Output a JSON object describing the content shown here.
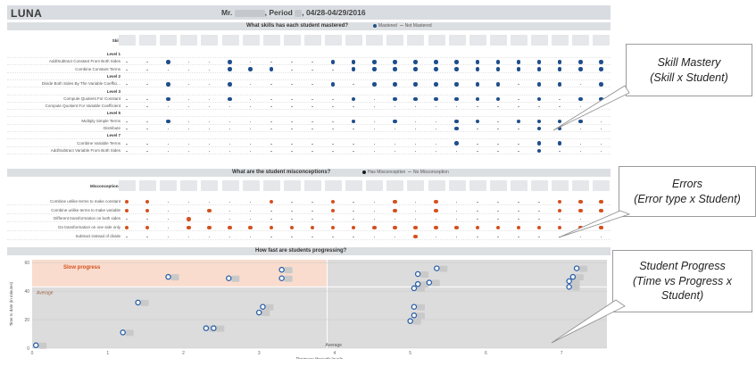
{
  "dashboard": {
    "logo": "LUNA",
    "title_prefix": "Mr.",
    "title_mid": ", Period",
    "title_suffix": ", 04/28-04/29/2016"
  },
  "mastery": {
    "header": "What skills has each student mastered?",
    "legend_mastered": "Mastered",
    "legend_not": "Not Mastered",
    "skill_label": "Skill",
    "rows": [
      {
        "label": "Level 1",
        "bold": true,
        "dots": []
      },
      {
        "label": "Add/Subtract Constant From Both Sides",
        "bold": false,
        "dots": [
          2,
          5,
          10,
          11,
          12,
          13,
          14,
          15,
          16,
          17,
          18,
          19,
          20,
          21,
          22,
          23
        ]
      },
      {
        "label": "Combine Constant Terms",
        "bold": false,
        "dots": [
          5,
          6,
          7,
          11,
          12,
          13,
          14,
          15,
          16,
          17,
          18,
          19,
          20,
          21,
          22,
          23
        ]
      },
      {
        "label": "Level 2",
        "bold": true,
        "dots": []
      },
      {
        "label": "Divide Both Sides By The Variable Coeffici...",
        "bold": false,
        "dots": [
          2,
          5,
          10,
          12,
          13,
          14,
          15,
          16,
          17,
          18,
          20,
          21,
          23
        ]
      },
      {
        "label": "Level 3",
        "bold": true,
        "dots": []
      },
      {
        "label": "Compute Quotient For Constant",
        "bold": false,
        "dots": [
          2,
          5,
          11,
          13,
          14,
          15,
          16,
          17,
          18,
          20,
          22,
          23
        ]
      },
      {
        "label": "Compute Quotient For Variable Coefficient",
        "bold": false,
        "dots": []
      },
      {
        "label": "Level 5",
        "bold": true,
        "dots": []
      },
      {
        "label": "Multiply Simple Terms",
        "bold": false,
        "dots": [
          2,
          11,
          13,
          16,
          17,
          19,
          20,
          21,
          22
        ]
      },
      {
        "label": "Distribute",
        "bold": false,
        "dots": [
          16,
          20,
          21
        ]
      },
      {
        "label": "Level 7",
        "bold": true,
        "dots": []
      },
      {
        "label": "Combine Variable Terms",
        "bold": false,
        "dots": [
          16,
          20,
          21
        ]
      },
      {
        "label": "Add/Subtract Variable From Both Sides",
        "bold": false,
        "dots": [
          20
        ]
      }
    ]
  },
  "errors": {
    "header": "What are the student misconceptions?",
    "legend_has": "Has Misconception",
    "legend_no": "No Misconception",
    "label": "Misconceptions",
    "rows": [
      {
        "label": "Combine unlike terms to make constant",
        "dots": [
          0,
          1,
          7,
          10,
          13,
          15,
          21,
          22,
          23
        ]
      },
      {
        "label": "Combine unlike terms to make variable",
        "dots": [
          0,
          1,
          4,
          10,
          13,
          15,
          21,
          22,
          23
        ]
      },
      {
        "label": "Different transformation on both sides",
        "dots": [
          3
        ]
      },
      {
        "label": "Do transformation on one side only",
        "dots": [
          0,
          1,
          3,
          4,
          5,
          6,
          7,
          8,
          9,
          10,
          11,
          12,
          13,
          14,
          15,
          16,
          17,
          18,
          19,
          20,
          21,
          22,
          23
        ]
      },
      {
        "label": "Subtract instead of divide",
        "dots": [
          14
        ]
      }
    ]
  },
  "progress": {
    "header": "How fast are students progressing?",
    "slow_label": "Slow progress",
    "avg_label_y": "Average",
    "avg_label_x": "Average",
    "xlabel": "Progress through levels",
    "ylabel": "Time to date (in minutes)"
  },
  "chart_data": {
    "type": "scatter",
    "title": "How fast are students progressing?",
    "xlabel": "Progress through levels",
    "ylabel": "Time to date (in minutes)",
    "xlim": [
      0,
      7.6
    ],
    "ylim": [
      0,
      62
    ],
    "xticks": [
      0,
      1,
      2,
      3,
      4,
      5,
      6,
      7
    ],
    "yticks": [
      0,
      20,
      40,
      60
    ],
    "average_x": 3.9,
    "average_y": 43,
    "slow_region": {
      "x": [
        0,
        3.9
      ],
      "y": [
        43,
        62
      ]
    },
    "points": [
      {
        "x": 0.05,
        "y": 2
      },
      {
        "x": 1.2,
        "y": 11
      },
      {
        "x": 1.4,
        "y": 32
      },
      {
        "x": 1.8,
        "y": 50
      },
      {
        "x": 2.3,
        "y": 14
      },
      {
        "x": 2.4,
        "y": 14
      },
      {
        "x": 2.6,
        "y": 49
      },
      {
        "x": 3.0,
        "y": 25
      },
      {
        "x": 3.05,
        "y": 29
      },
      {
        "x": 3.3,
        "y": 49
      },
      {
        "x": 3.3,
        "y": 55
      },
      {
        "x": 5.0,
        "y": 19
      },
      {
        "x": 5.05,
        "y": 23
      },
      {
        "x": 5.05,
        "y": 29
      },
      {
        "x": 5.05,
        "y": 42
      },
      {
        "x": 5.1,
        "y": 45
      },
      {
        "x": 5.1,
        "y": 52
      },
      {
        "x": 5.25,
        "y": 46
      },
      {
        "x": 5.35,
        "y": 56
      },
      {
        "x": 7.1,
        "y": 43
      },
      {
        "x": 7.1,
        "y": 47
      },
      {
        "x": 7.15,
        "y": 50
      },
      {
        "x": 7.2,
        "y": 56
      }
    ]
  },
  "callouts": [
    {
      "lines": [
        "Skill Mastery",
        "(Skill x Student)"
      ]
    },
    {
      "lines": [
        "Errors",
        "(Error type x Student)"
      ]
    },
    {
      "lines": [
        "Student Progress",
        "(Time vs Progress x",
        "Student)"
      ]
    }
  ],
  "colors": {
    "mastered": "#1f4e8c",
    "misconception": "#d4501e",
    "slow_region": "#f9dccd",
    "plot_bg": "#dcdcdc",
    "header_bg": "#dcdfe2"
  }
}
